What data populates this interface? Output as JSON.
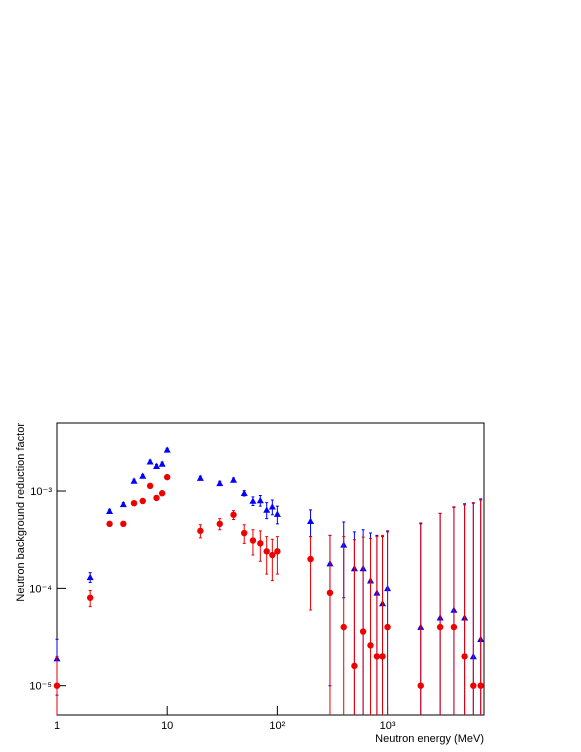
{
  "chart_data": {
    "type": "scatter",
    "xlabel": "Neutron energy (MeV)",
    "ylabel": "Neutron background reduction factor",
    "xscale": "log",
    "yscale": "log",
    "xlim": [
      1,
      7500
    ],
    "ylim": [
      5e-06,
      0.005
    ],
    "xticks": [
      1,
      10,
      {
        "value": 100,
        "label": "10²"
      },
      {
        "value": 1000,
        "label": "10³"
      }
    ],
    "yticks": [
      {
        "value": 1e-05,
        "label": "10⁻⁵"
      },
      {
        "value": 0.0001,
        "label": "10⁻⁴"
      },
      {
        "value": 0.001,
        "label": "10⁻³"
      }
    ],
    "x": [
      1,
      2,
      3,
      4,
      5,
      6,
      7,
      8,
      9,
      10,
      20,
      30,
      40,
      50,
      60,
      70,
      80,
      90,
      100,
      200,
      300,
      400,
      500,
      600,
      700,
      800,
      900,
      1000,
      2000,
      3000,
      4000,
      5000,
      6000,
      7000
    ],
    "series": [
      {
        "color": "#0000ff",
        "marker": "triangle",
        "values": [
          1.9e-05,
          0.00013,
          0.00062,
          0.00073,
          0.00127,
          0.00143,
          0.002,
          0.0018,
          0.0019,
          0.00265,
          0.00136,
          0.0012,
          0.0013,
          0.00095,
          0.00079,
          0.0008,
          0.00064,
          0.00069,
          0.00058,
          0.00049,
          0.00018,
          0.00028,
          0.00016,
          0.00016,
          0.00012,
          9e-05,
          7e-05,
          0.0001,
          4e-05,
          5e-05,
          6e-05,
          5e-05,
          2e-05,
          3e-05
        ],
        "errors": [
          1.1e-05,
          1.5e-05,
          3e-05,
          3e-05,
          5e-05,
          5e-05,
          8e-05,
          8e-05,
          8e-05,
          0.0001,
          6e-05,
          6e-05,
          6e-05,
          6e-05,
          8e-05,
          0.0001,
          0.00012,
          0.00012,
          0.00012,
          0.00015,
          0.00017,
          0.0002,
          0.00022,
          0.00024,
          0.00025,
          0.00026,
          0.00027,
          0.00029,
          0.00043,
          0.00054,
          0.00062,
          0.00069,
          0.00073,
          0.0008
        ]
      },
      {
        "color": "#ee0000",
        "marker": "circle",
        "values": [
          1e-05,
          8e-05,
          0.00046,
          0.00046,
          0.00075,
          0.00079,
          0.00113,
          0.00085,
          0.00095,
          0.00139,
          0.00039,
          0.00046,
          0.00057,
          0.00037,
          0.00031,
          0.00029,
          0.00024,
          0.00022,
          0.00024,
          0.0002,
          9e-05,
          4e-05,
          1.6e-05,
          3.6e-05,
          2.6e-05,
          2e-05,
          2e-05,
          4e-05,
          1e-05,
          4e-05,
          4e-05,
          2e-05,
          1e-05,
          1e-05
        ],
        "errors": [
          1e-05,
          1.5e-05,
          2e-05,
          2e-05,
          2e-05,
          2e-05,
          2e-05,
          2e-05,
          2e-05,
          2e-05,
          6e-05,
          6e-05,
          6e-05,
          8e-05,
          9e-05,
          0.0001,
          0.0001,
          0.0001,
          0.0001,
          0.00014,
          0.00026,
          0.0003,
          0.0003,
          0.0003,
          0.0003,
          0.00032,
          0.00033,
          0.00034,
          0.00045,
          0.00055,
          0.00065,
          0.0007,
          0.00075,
          0.0008
        ]
      }
    ]
  }
}
